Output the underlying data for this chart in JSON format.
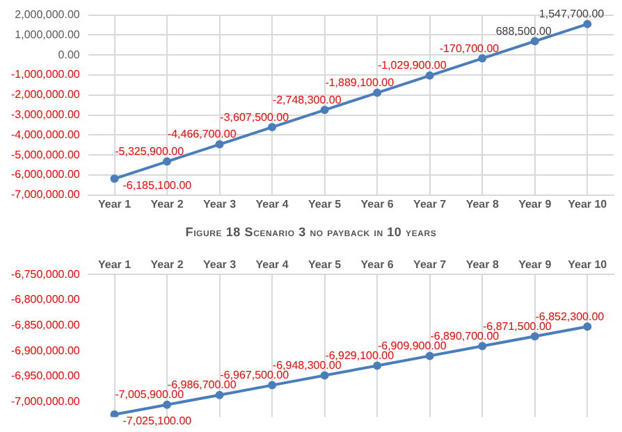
{
  "chart_data": [
    {
      "type": "line",
      "categories": [
        "Year 1",
        "Year 2",
        "Year 3",
        "Year 4",
        "Year 5",
        "Year 6",
        "Year 7",
        "Year 8",
        "Year 9",
        "Year 10"
      ],
      "series": [
        {
          "color": "#4a7ebb",
          "values": [
            -6185100,
            -5325900,
            -4466700,
            -3607500,
            -2748300,
            -1889100,
            -1029900,
            -170700,
            688500,
            1547700
          ],
          "value_labels": [
            "-6,185,100.00",
            "-5,325,900.00",
            "-4,466,700.00",
            "-3,607,500.00",
            "-2,748,300.00",
            "-1,889,100.00",
            "-1,029,900.00",
            "-170,700.00",
            "688,500.00",
            "1,547,700.00"
          ]
        }
      ],
      "ylim": [
        -7000000,
        2000000
      ],
      "yticks": [
        {
          "value": 2000000,
          "label": "2,000,000.00"
        },
        {
          "value": 1000000,
          "label": "1,000,000.00"
        },
        {
          "value": 0,
          "label": "0.00"
        },
        {
          "value": -1000000,
          "label": "-1,000,000.00"
        },
        {
          "value": -2000000,
          "label": "-2,000,000.00"
        },
        {
          "value": -3000000,
          "label": "-3,000,000.00"
        },
        {
          "value": -4000000,
          "label": "-4,000,000.00"
        },
        {
          "value": -5000000,
          "label": "-5,000,000.00"
        },
        {
          "value": -6000000,
          "label": "-6,000,000.00"
        },
        {
          "value": -7000000,
          "label": "-7,000,000.00"
        }
      ],
      "grid": true,
      "marker": "circle",
      "line_style": "solid",
      "legend": false,
      "annotations": [
        "Figure 18 Scenario 3 no payback in 10 years"
      ]
    },
    {
      "type": "line",
      "categories": [
        "Year 1",
        "Year 2",
        "Year 3",
        "Year 4",
        "Year 5",
        "Year 6",
        "Year 7",
        "Year 8",
        "Year 9",
        "Year 10"
      ],
      "series": [
        {
          "color": "#4a7ebb",
          "values": [
            -7025100,
            -7005900,
            -6986700,
            -6967500,
            -6948300,
            -6929100,
            -6909900,
            -6890700,
            -6871500,
            -6852300
          ],
          "value_labels": [
            "-7,025,100.00",
            "-7,005,900.00",
            "-6,986,700.00",
            "-6,967,500.00",
            "-6,948,300.00",
            "-6,929,100.00",
            "-6,909,900.00",
            "-6,890,700.00",
            "-6,871,500.00",
            "-6,852,300.00"
          ]
        }
      ],
      "ylim": [
        -7030000,
        -6750000
      ],
      "yticks": [
        {
          "value": -6750000,
          "label": "-6,750,000.00"
        },
        {
          "value": -6800000,
          "label": "-6,800,000.00"
        },
        {
          "value": -6850000,
          "label": "-6,850,000.00"
        },
        {
          "value": -6900000,
          "label": "-6,900,000.00"
        },
        {
          "value": -6950000,
          "label": "-6,950,000.00"
        },
        {
          "value": -7000000,
          "label": "-7,000,000.00"
        }
      ],
      "grid": "x",
      "marker": "circle",
      "line_style": "solid",
      "legend": false
    }
  ]
}
